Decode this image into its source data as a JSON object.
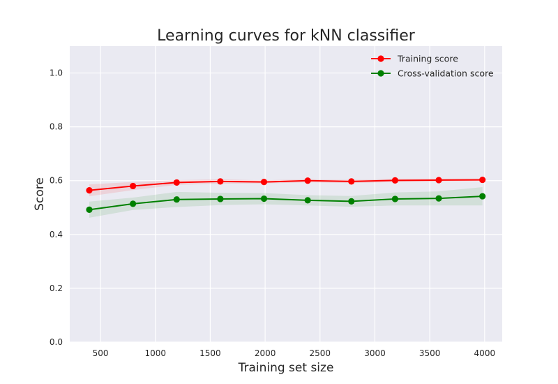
{
  "chart_data": {
    "type": "line",
    "title": "Learning curves for kNN classifier",
    "xlabel": "Training set size",
    "ylabel": "Score",
    "xlim": [
      220,
      4160
    ],
    "ylim": [
      0.0,
      1.1
    ],
    "grid": true,
    "legend_position": "top-right",
    "x_ticks": [
      500,
      1000,
      1500,
      2000,
      2500,
      3000,
      3500,
      4000
    ],
    "x_tick_labels": [
      "500",
      "1000",
      "1500",
      "2000",
      "2500",
      "3000",
      "3500",
      "4000"
    ],
    "y_ticks": [
      0.0,
      0.2,
      0.4,
      0.6,
      0.8,
      1.0
    ],
    "y_tick_labels": [
      "0.0",
      "0.2",
      "0.4",
      "0.6",
      "0.8",
      "1.0"
    ],
    "x": [
      398,
      796,
      1194,
      1592,
      1990,
      2388,
      2786,
      3184,
      3582,
      3980
    ],
    "series": [
      {
        "name": "Training score",
        "color": "#ff0000",
        "band_color": "#ff0000",
        "values": [
          0.564,
          0.58,
          0.593,
          0.597,
          0.595,
          0.6,
          0.597,
          0.601,
          0.602,
          0.603
        ],
        "lower": [
          0.542,
          0.565,
          0.584,
          0.589,
          0.589,
          0.594,
          0.591,
          0.595,
          0.597,
          0.598
        ],
        "upper": [
          0.586,
          0.595,
          0.602,
          0.605,
          0.601,
          0.606,
          0.603,
          0.607,
          0.607,
          0.608
        ]
      },
      {
        "name": "Cross-validation score",
        "color": "#008000",
        "band_color": "#008000",
        "values": [
          0.492,
          0.514,
          0.53,
          0.532,
          0.533,
          0.527,
          0.523,
          0.532,
          0.534,
          0.542
        ],
        "lower": [
          0.462,
          0.491,
          0.502,
          0.509,
          0.512,
          0.508,
          0.503,
          0.508,
          0.508,
          0.508
        ],
        "upper": [
          0.522,
          0.537,
          0.558,
          0.555,
          0.554,
          0.546,
          0.543,
          0.556,
          0.56,
          0.576
        ]
      }
    ]
  },
  "colors": {
    "plot_background": "#eaeaf2",
    "grid": "#ffffff",
    "text": "#262626"
  }
}
